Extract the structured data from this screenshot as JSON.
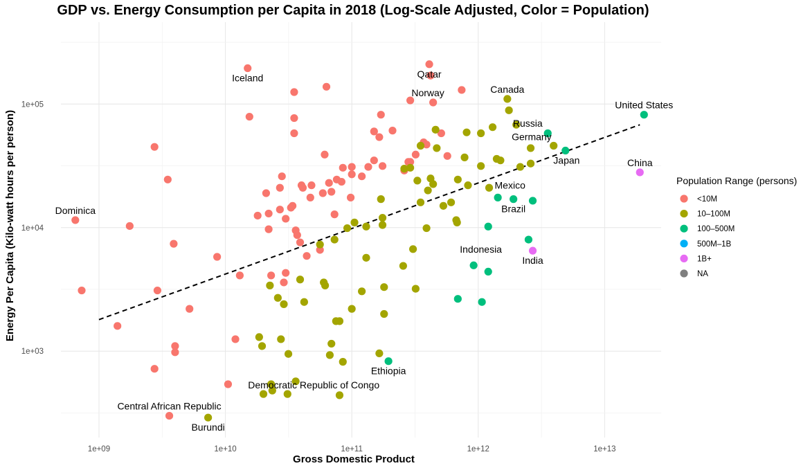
{
  "chart_data": {
    "type": "scatter",
    "title": "GDP vs. Energy Consumption per Capita in 2018 (Log-Scale Adjusted, Color = Population)",
    "xlabel": "Gross Domestic Product",
    "ylabel": "Energy Per Capita (Kilo-watt hours per person)",
    "x_scale": "log10",
    "y_scale": "log10",
    "xlim": [
      500000000.0,
      28000000000000.0
    ],
    "ylim": [
      200,
      460000
    ],
    "x_ticks": [
      {
        "v": 1000000000.0,
        "label": "1e+09"
      },
      {
        "v": 10000000000.0,
        "label": "1e+10"
      },
      {
        "v": 100000000000.0,
        "label": "1e+11"
      },
      {
        "v": 1000000000000.0,
        "label": "1e+12"
      },
      {
        "v": 10000000000000.0,
        "label": "1e+13"
      }
    ],
    "y_ticks": [
      {
        "v": 1000,
        "label": "1e+03"
      },
      {
        "v": 10000,
        "label": "1e+04"
      },
      {
        "v": 100000,
        "label": "1e+05"
      }
    ],
    "grid": true,
    "legend": {
      "title": "Population Range (persons)",
      "position": "right",
      "entries": [
        {
          "name": "<10M",
          "color": "#F8766D"
        },
        {
          "name": "10–100M",
          "color": "#A3A500"
        },
        {
          "name": "100–500M",
          "color": "#00BF7D"
        },
        {
          "name": "500M–1B",
          "color": "#00B0F6"
        },
        {
          "name": "1B+",
          "color": "#E76BF3"
        },
        {
          "name": "NA",
          "color": "#7F7F7F"
        }
      ]
    },
    "trend_line": {
      "style": "dashed",
      "from": [
        1000000000.0,
        1800
      ],
      "to": [
        19000000000000.0,
        68000
      ]
    },
    "annotations": [
      {
        "text": "Iceland",
        "x": 15000000000.0,
        "y": 195000,
        "anchor": "below"
      },
      {
        "text": "Qatar",
        "x": 410000000000.0,
        "y": 210000,
        "anchor": "below"
      },
      {
        "text": "Norway",
        "x": 400000000000.0,
        "y": 103000,
        "anchor": "above"
      },
      {
        "text": "Canada",
        "x": 1700000000000.0,
        "y": 110000,
        "anchor": "above"
      },
      {
        "text": "Russia",
        "x": 1700000000000.0,
        "y": 70000,
        "anchor": "right"
      },
      {
        "text": "United States",
        "x": 20500000000000.0,
        "y": 82000,
        "anchor": "above"
      },
      {
        "text": "Germany",
        "x": 4000000000000.0,
        "y": 46000,
        "anchor": "above-left"
      },
      {
        "text": "Japan",
        "x": 5000000000000.0,
        "y": 42000,
        "anchor": "below"
      },
      {
        "text": "China",
        "x": 19000000000000.0,
        "y": 28000,
        "anchor": "above"
      },
      {
        "text": "Mexico",
        "x": 1220000000000.0,
        "y": 22000,
        "anchor": "right"
      },
      {
        "text": "Brazil",
        "x": 1900000000000.0,
        "y": 17000,
        "anchor": "below"
      },
      {
        "text": "Indonesia",
        "x": 1050000000000.0,
        "y": 8000,
        "anchor": "below"
      },
      {
        "text": "India",
        "x": 2700000000000.0,
        "y": 6500,
        "anchor": "below"
      },
      {
        "text": "Dominica",
        "x": 650000000.0,
        "y": 11500,
        "anchor": "above"
      },
      {
        "text": "Ethiopia",
        "x": 195000000000.0,
        "y": 830,
        "anchor": "below"
      },
      {
        "text": "Democratic Republic of Congo",
        "x": 50000000000.0,
        "y": 445,
        "anchor": "above"
      },
      {
        "text": "Central African Republic",
        "x": 3600000000.0,
        "y": 300,
        "anchor": "above"
      },
      {
        "text": "Burundi",
        "x": 7300000000.0,
        "y": 290,
        "anchor": "below"
      }
    ],
    "series": [
      {
        "name": "<10M",
        "color": "#F8766D",
        "points": [
          [
            650000000.0,
            11500
          ],
          [
            730000000.0,
            3100
          ],
          [
            1400000000.0,
            1600
          ],
          [
            1750000000.0,
            10300
          ],
          [
            2900000000.0,
            3100
          ],
          [
            2750000000.0,
            720
          ],
          [
            2750000000.0,
            45000
          ],
          [
            3500000000.0,
            24500
          ],
          [
            3600000000.0,
            300
          ],
          [
            3900000000.0,
            7400
          ],
          [
            4000000000.0,
            1100
          ],
          [
            4000000000.0,
            980
          ],
          [
            5200000000.0,
            2200
          ],
          [
            8600000000.0,
            5800
          ],
          [
            10500000000.0,
            540
          ],
          [
            12000000000.0,
            1250
          ],
          [
            13000000000.0,
            4100
          ],
          [
            15000000000.0,
            195000
          ],
          [
            15500000000.0,
            79000
          ],
          [
            18000000000.0,
            12500
          ],
          [
            21000000000.0,
            19000
          ],
          [
            22000000000.0,
            9700
          ],
          [
            22000000000.0,
            13000
          ],
          [
            23000000000.0,
            4100
          ],
          [
            27000000000.0,
            14000
          ],
          [
            27000000000.0,
            21000
          ],
          [
            28000000000.0,
            26000
          ],
          [
            29000000000.0,
            3600
          ],
          [
            30000000000.0,
            11800
          ],
          [
            30000000000.0,
            4300
          ],
          [
            33000000000.0,
            14500
          ],
          [
            34000000000.0,
            15000
          ],
          [
            35000000000.0,
            125000
          ],
          [
            35000000000.0,
            77000
          ],
          [
            35000000000.0,
            58000
          ],
          [
            36000000000.0,
            9500
          ],
          [
            37000000000.0,
            8700
          ],
          [
            39000000000.0,
            7600
          ],
          [
            40000000000.0,
            22000
          ],
          [
            41000000000.0,
            21000
          ],
          [
            44000000000.0,
            5900
          ],
          [
            47000000000.0,
            17500
          ],
          [
            48000000000.0,
            22000
          ],
          [
            56000000000.0,
            6600
          ],
          [
            59000000000.0,
            19000
          ],
          [
            61000000000.0,
            39000
          ],
          [
            63000000000.0,
            138000
          ],
          [
            66000000000.0,
            23000
          ],
          [
            69000000000.0,
            19500
          ],
          [
            73000000000.0,
            12800
          ],
          [
            76000000000.0,
            24500
          ],
          [
            83000000000.0,
            23500
          ],
          [
            85000000000.0,
            30500
          ],
          [
            98000000000.0,
            17500
          ],
          [
            100000000000.0,
            27000
          ],
          [
            100000000000.0,
            31000
          ],
          [
            120000000000.0,
            26000
          ],
          [
            135000000000.0,
            31000
          ],
          [
            150000000000.0,
            35000
          ],
          [
            150000000000.0,
            60000
          ],
          [
            165000000000.0,
            54000
          ],
          [
            170000000000.0,
            82000
          ],
          [
            175000000000.0,
            31500
          ],
          [
            210000000000.0,
            61000
          ],
          [
            260000000000.0,
            29000
          ],
          [
            280000000000.0,
            34000
          ],
          [
            290000000000.0,
            34000
          ],
          [
            290000000000.0,
            107000
          ],
          [
            320000000000.0,
            39000
          ],
          [
            370000000000.0,
            49000
          ],
          [
            390000000000.0,
            47000
          ],
          [
            410000000000.0,
            210000
          ],
          [
            420000000000.0,
            170000
          ],
          [
            440000000000.0,
            103000
          ],
          [
            510000000000.0,
            58000
          ],
          [
            570000000000.0,
            38000
          ],
          [
            740000000000.0,
            130000
          ]
        ]
      },
      {
        "name": "10–100M",
        "color": "#A3A500",
        "points": [
          [
            18500000000.0,
            1300
          ],
          [
            19500000000.0,
            1100
          ],
          [
            20000000000.0,
            450
          ],
          [
            22500000000.0,
            3400
          ],
          [
            23000000000.0,
            540
          ],
          [
            23500000000.0,
            480
          ],
          [
            26000000000.0,
            2700
          ],
          [
            27500000000.0,
            1250
          ],
          [
            29000000000.0,
            2400
          ],
          [
            31000000000.0,
            450
          ],
          [
            31500000000.0,
            950
          ],
          [
            36000000000.0,
            570
          ],
          [
            39000000000.0,
            3800
          ],
          [
            42000000000.0,
            2500
          ],
          [
            56000000000.0,
            7300
          ],
          [
            60000000000.0,
            3600
          ],
          [
            61500000000.0,
            3400
          ],
          [
            67000000000.0,
            930
          ],
          [
            69000000000.0,
            1150
          ],
          [
            73000000000.0,
            8000
          ],
          [
            75000000000.0,
            1750
          ],
          [
            80000000000.0,
            1750
          ],
          [
            80000000000.0,
            440
          ],
          [
            85000000000.0,
            820
          ],
          [
            92000000000.0,
            9900
          ],
          [
            100000000000.0,
            2200
          ],
          [
            105000000000.0,
            11000
          ],
          [
            120000000000.0,
            3050
          ],
          [
            130000000000.0,
            10200
          ],
          [
            130000000000.0,
            5700
          ],
          [
            165000000000.0,
            960
          ],
          [
            170000000000.0,
            17000
          ],
          [
            175000000000.0,
            10500
          ],
          [
            175000000000.0,
            12000
          ],
          [
            180000000000.0,
            2000
          ],
          [
            180000000000.0,
            3300
          ],
          [
            255000000000.0,
            4900
          ],
          [
            260000000000.0,
            30000
          ],
          [
            290000000000.0,
            30500
          ],
          [
            305000000000.0,
            6700
          ],
          [
            320000000000.0,
            3200
          ],
          [
            330000000000.0,
            24000
          ],
          [
            350000000000.0,
            46000
          ],
          [
            350000000000.0,
            16000
          ],
          [
            390000000000.0,
            9900
          ],
          [
            400000000000.0,
            20000
          ],
          [
            420000000000.0,
            25000
          ],
          [
            440000000000.0,
            22500
          ],
          [
            460000000000.0,
            62000
          ],
          [
            470000000000.0,
            44000
          ],
          [
            530000000000.0,
            15000
          ],
          [
            610000000000.0,
            16000
          ],
          [
            670000000000.0,
            11500
          ],
          [
            680000000000.0,
            11000
          ],
          [
            690000000000.0,
            24500
          ],
          [
            780000000000.0,
            37000
          ],
          [
            810000000000.0,
            59000
          ],
          [
            830000000000.0,
            22000
          ],
          [
            1050000000000.0,
            31500
          ],
          [
            1050000000000.0,
            58000
          ],
          [
            1220000000000.0,
            21000
          ],
          [
            1300000000000.0,
            65000
          ],
          [
            1400000000000.0,
            36000
          ],
          [
            1500000000000.0,
            35000
          ],
          [
            1700000000000.0,
            110000
          ],
          [
            1750000000000.0,
            89000
          ],
          [
            2000000000000.0,
            68000
          ],
          [
            2150000000000.0,
            31000
          ],
          [
            2600000000000.0,
            33000
          ],
          [
            2600000000000.0,
            44000
          ],
          [
            3950000000000.0,
            46000
          ],
          [
            7300000000.0,
            290
          ]
        ]
      },
      {
        "name": "100–500M",
        "color": "#00BF7D",
        "points": [
          [
            195000000000.0,
            830
          ],
          [
            690000000000.0,
            2650
          ],
          [
            920000000000.0,
            4950
          ],
          [
            1070000000000.0,
            2500
          ],
          [
            1200000000000.0,
            10200
          ],
          [
            1200000000000.0,
            4400
          ],
          [
            1430000000000.0,
            17500
          ],
          [
            1900000000000.0,
            17000
          ],
          [
            2500000000000.0,
            8000
          ],
          [
            2700000000000.0,
            16500
          ],
          [
            3550000000000.0,
            58000
          ],
          [
            4900000000000.0,
            42000
          ],
          [
            20500000000000.0,
            82000
          ]
        ]
      },
      {
        "name": "500M–1B",
        "color": "#00B0F6",
        "points": []
      },
      {
        "name": "1B+",
        "color": "#E76BF3",
        "points": [
          [
            2700000000000.0,
            6500
          ],
          [
            19000000000000.0,
            28000
          ]
        ]
      }
    ]
  }
}
